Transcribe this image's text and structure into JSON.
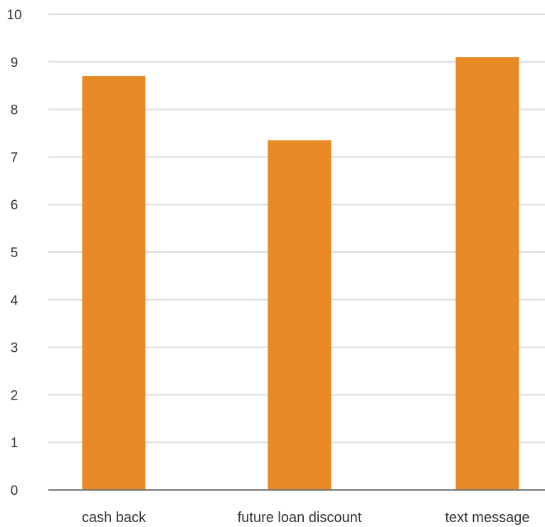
{
  "chart_data": {
    "type": "bar",
    "title": "",
    "xlabel": "",
    "ylabel": "",
    "categories": [
      "cash back",
      "future loan discount",
      "text message"
    ],
    "values": [
      8.7,
      7.35,
      9.1
    ],
    "ylim": [
      0,
      10
    ],
    "yticks": [
      "0",
      "1",
      "2",
      "3",
      "4",
      "5",
      "6",
      "7",
      "8",
      "9",
      "10"
    ],
    "grid": true,
    "legend": "none",
    "colors": {
      "bar": "#E88A25",
      "grid": "#DCDCDC",
      "axis": "#777777",
      "text": "#333333"
    }
  }
}
